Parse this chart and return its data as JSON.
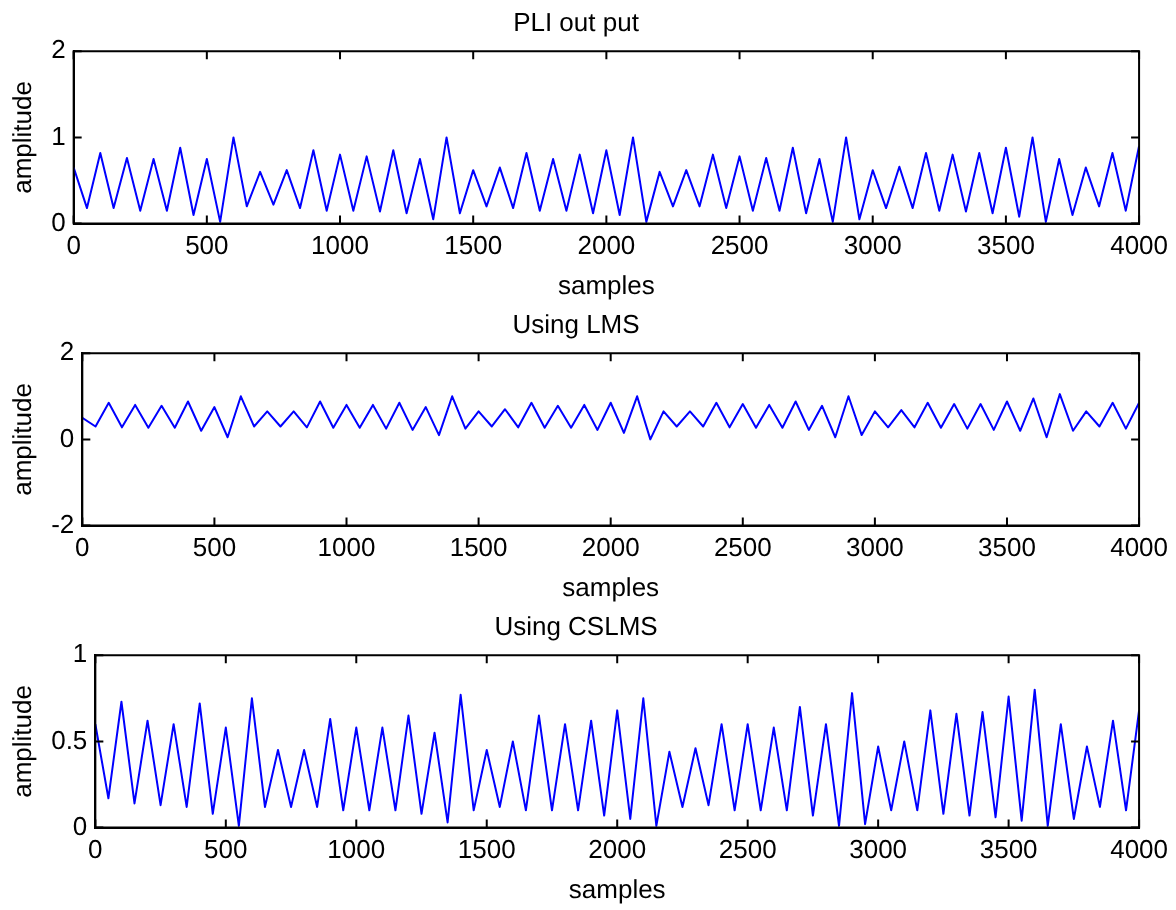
{
  "chart_data": [
    {
      "type": "line",
      "title": "PLI out put",
      "xlabel": "samples",
      "ylabel": "amplitude",
      "x": [
        0,
        50,
        100,
        150,
        200,
        250,
        300,
        350,
        400,
        450,
        500,
        550,
        600,
        650,
        700,
        750,
        800,
        850,
        900,
        950,
        1000,
        1050,
        1100,
        1150,
        1200,
        1250,
        1300,
        1350,
        1400,
        1450,
        1500,
        1550,
        1600,
        1650,
        1700,
        1750,
        1800,
        1850,
        1900,
        1950,
        2000,
        2050,
        2100,
        2150,
        2200,
        2250,
        2300,
        2350,
        2400,
        2450,
        2500,
        2550,
        2600,
        2650,
        2700,
        2750,
        2800,
        2850,
        2900,
        2950,
        3000,
        3050,
        3100,
        3150,
        3200,
        3250,
        3300,
        3350,
        3400,
        3450,
        3500,
        3550,
        3600,
        3650,
        3700,
        3750,
        3800,
        3850,
        3900,
        3950,
        4000
      ],
      "series": [
        {
          "color": "#0000ff",
          "values": [
            0.65,
            0.18,
            0.82,
            0.18,
            0.76,
            0.15,
            0.75,
            0.15,
            0.88,
            0.1,
            0.75,
            0.02,
            1.0,
            0.2,
            0.6,
            0.22,
            0.62,
            0.18,
            0.85,
            0.15,
            0.8,
            0.15,
            0.78,
            0.14,
            0.85,
            0.12,
            0.75,
            0.05,
            1.0,
            0.12,
            0.62,
            0.2,
            0.65,
            0.18,
            0.82,
            0.15,
            0.75,
            0.15,
            0.8,
            0.12,
            0.85,
            0.1,
            1.0,
            0.02,
            0.6,
            0.2,
            0.62,
            0.2,
            0.8,
            0.18,
            0.78,
            0.15,
            0.76,
            0.15,
            0.88,
            0.12,
            0.75,
            0.02,
            1.0,
            0.05,
            0.62,
            0.18,
            0.66,
            0.18,
            0.82,
            0.15,
            0.8,
            0.14,
            0.82,
            0.12,
            0.88,
            0.08,
            1.0,
            0.02,
            0.75,
            0.1,
            0.65,
            0.2,
            0.82,
            0.15,
            0.9
          ]
        }
      ],
      "xlim": [
        0,
        4000
      ],
      "xticks": [
        0,
        500,
        1000,
        1500,
        2000,
        2500,
        3000,
        3500,
        4000
      ],
      "ylim": [
        0,
        2
      ],
      "yticks": [
        0,
        1,
        2
      ],
      "grid": false,
      "legend": false
    },
    {
      "type": "line",
      "title": "Using LMS",
      "xlabel": "samples",
      "ylabel": "amplitude",
      "x": [
        0,
        50,
        100,
        150,
        200,
        250,
        300,
        350,
        400,
        450,
        500,
        550,
        600,
        650,
        700,
        750,
        800,
        850,
        900,
        950,
        1000,
        1050,
        1100,
        1150,
        1200,
        1250,
        1300,
        1350,
        1400,
        1450,
        1500,
        1550,
        1600,
        1650,
        1700,
        1750,
        1800,
        1850,
        1900,
        1950,
        2000,
        2050,
        2100,
        2150,
        2200,
        2250,
        2300,
        2350,
        2400,
        2450,
        2500,
        2550,
        2600,
        2650,
        2700,
        2750,
        2800,
        2850,
        2900,
        2950,
        3000,
        3050,
        3100,
        3150,
        3200,
        3250,
        3300,
        3350,
        3400,
        3450,
        3500,
        3550,
        3600,
        3650,
        3700,
        3750,
        3800,
        3850,
        3900,
        3950,
        4000
      ],
      "series": [
        {
          "color": "#0000ff",
          "values": [
            0.5,
            0.3,
            0.85,
            0.28,
            0.8,
            0.27,
            0.78,
            0.27,
            0.88,
            0.2,
            0.75,
            0.05,
            1.0,
            0.3,
            0.65,
            0.3,
            0.65,
            0.28,
            0.88,
            0.27,
            0.8,
            0.27,
            0.8,
            0.25,
            0.85,
            0.22,
            0.75,
            0.1,
            1.0,
            0.25,
            0.65,
            0.3,
            0.7,
            0.28,
            0.85,
            0.27,
            0.78,
            0.27,
            0.8,
            0.22,
            0.85,
            0.15,
            1.0,
            0.0,
            0.65,
            0.3,
            0.65,
            0.3,
            0.85,
            0.28,
            0.82,
            0.27,
            0.8,
            0.27,
            0.88,
            0.22,
            0.78,
            0.05,
            1.0,
            0.1,
            0.65,
            0.28,
            0.68,
            0.28,
            0.85,
            0.27,
            0.82,
            0.25,
            0.82,
            0.22,
            0.88,
            0.2,
            0.95,
            0.05,
            1.05,
            0.2,
            0.65,
            0.3,
            0.85,
            0.25,
            0.85
          ]
        }
      ],
      "xlim": [
        0,
        4000
      ],
      "xticks": [
        0,
        500,
        1000,
        1500,
        2000,
        2500,
        3000,
        3500,
        4000
      ],
      "ylim": [
        -2,
        2
      ],
      "yticks": [
        -2,
        0,
        2
      ],
      "grid": false,
      "legend": false
    },
    {
      "type": "line",
      "title": "Using CSLMS",
      "xlabel": "samples",
      "ylabel": "amplitude",
      "x": [
        0,
        50,
        100,
        150,
        200,
        250,
        300,
        350,
        400,
        450,
        500,
        550,
        600,
        650,
        700,
        750,
        800,
        850,
        900,
        950,
        1000,
        1050,
        1100,
        1150,
        1200,
        1250,
        1300,
        1350,
        1400,
        1450,
        1500,
        1550,
        1600,
        1650,
        1700,
        1750,
        1800,
        1850,
        1900,
        1950,
        2000,
        2050,
        2100,
        2150,
        2200,
        2250,
        2300,
        2350,
        2400,
        2450,
        2500,
        2550,
        2600,
        2650,
        2700,
        2750,
        2800,
        2850,
        2900,
        2950,
        3000,
        3050,
        3100,
        3150,
        3200,
        3250,
        3300,
        3350,
        3400,
        3450,
        3500,
        3550,
        3600,
        3650,
        3700,
        3750,
        3800,
        3850,
        3900,
        3950,
        4000
      ],
      "series": [
        {
          "color": "#0000ff",
          "values": [
            0.6,
            0.17,
            0.73,
            0.14,
            0.62,
            0.13,
            0.6,
            0.12,
            0.72,
            0.08,
            0.58,
            0.01,
            0.75,
            0.12,
            0.45,
            0.12,
            0.45,
            0.12,
            0.63,
            0.1,
            0.58,
            0.1,
            0.58,
            0.1,
            0.65,
            0.08,
            0.55,
            0.03,
            0.77,
            0.1,
            0.45,
            0.12,
            0.5,
            0.1,
            0.65,
            0.1,
            0.6,
            0.1,
            0.62,
            0.07,
            0.68,
            0.05,
            0.75,
            0.01,
            0.44,
            0.12,
            0.46,
            0.13,
            0.6,
            0.1,
            0.6,
            0.1,
            0.58,
            0.1,
            0.7,
            0.07,
            0.6,
            0.01,
            0.78,
            0.02,
            0.47,
            0.1,
            0.5,
            0.1,
            0.68,
            0.08,
            0.66,
            0.07,
            0.67,
            0.06,
            0.76,
            0.04,
            0.8,
            0.01,
            0.6,
            0.05,
            0.47,
            0.12,
            0.62,
            0.1,
            0.68
          ]
        }
      ],
      "xlim": [
        0,
        4000
      ],
      "xticks": [
        0,
        500,
        1000,
        1500,
        2000,
        2500,
        3000,
        3500,
        4000
      ],
      "ylim": [
        0,
        1
      ],
      "yticks": [
        0,
        0.5,
        1
      ],
      "grid": false,
      "legend": false
    }
  ]
}
